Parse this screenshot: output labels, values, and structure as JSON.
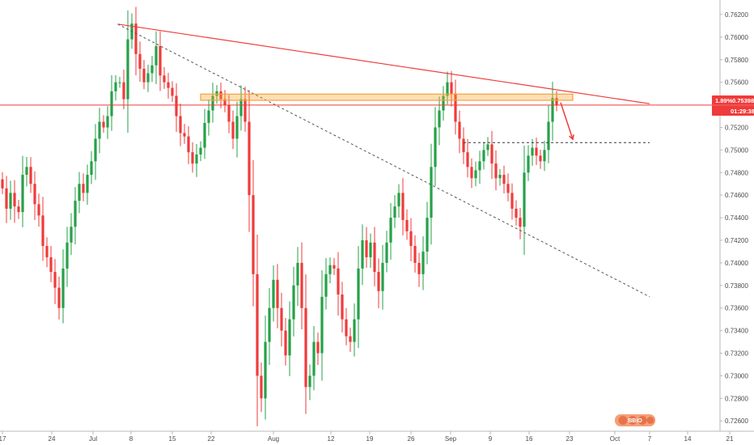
{
  "chart_data": {
    "type": "candlestick",
    "y_ticks": [
      "0.76200",
      "0.76000",
      "0.75800",
      "0.75600",
      "0.75400",
      "0.75200",
      "0.75000",
      "0.74800",
      "0.74600",
      "0.74400",
      "0.74200",
      "0.74000",
      "0.73800",
      "0.73600",
      "0.73400",
      "0.73200",
      "0.73000",
      "0.72800",
      "0.72600"
    ],
    "x_ticks": [
      "17",
      "24",
      "Jul",
      "8",
      "15",
      "22",
      "Aug",
      "12",
      "19",
      "26",
      "Sep",
      "9",
      "16",
      "23",
      "Oct",
      "7",
      "14",
      "21"
    ],
    "ylim": [
      0.7253,
      0.763
    ],
    "current_price": {
      "change": "1.89%",
      "price": "0.75398",
      "countdown": "01:29:38",
      "value": 0.75398
    },
    "candles_close": [
      0.7466,
      0.7448,
      0.7462,
      0.745,
      0.7445,
      0.7478,
      0.7485,
      0.747,
      0.7452,
      0.7442,
      0.7415,
      0.7405,
      0.7392,
      0.7378,
      0.736,
      0.7395,
      0.7418,
      0.7432,
      0.7455,
      0.747,
      0.7462,
      0.7478,
      0.749,
      0.751,
      0.7525,
      0.752,
      0.753,
      0.7552,
      0.756,
      0.756,
      0.7545,
      0.7598,
      0.7612,
      0.7585,
      0.7572,
      0.756,
      0.7568,
      0.7575,
      0.7592,
      0.7566,
      0.756,
      0.7555,
      0.7548,
      0.753,
      0.7515,
      0.7512,
      0.7498,
      0.7488,
      0.7496,
      0.7502,
      0.7524,
      0.7535,
      0.7548,
      0.7552,
      0.7545,
      0.754,
      0.7525,
      0.751,
      0.753,
      0.7545,
      0.7525,
      0.746,
      0.739,
      0.73,
      0.728,
      0.733,
      0.736,
      0.7385,
      0.736,
      0.734,
      0.7318,
      0.735,
      0.738,
      0.74,
      0.736,
      0.729,
      0.73,
      0.733,
      0.732,
      0.737,
      0.739,
      0.7398,
      0.7395,
      0.7372,
      0.735,
      0.7335,
      0.733,
      0.735,
      0.7395,
      0.742,
      0.7405,
      0.7418,
      0.7392,
      0.7375,
      0.74,
      0.7418,
      0.744,
      0.745,
      0.7462,
      0.7438,
      0.7428,
      0.7415,
      0.74,
      0.739,
      0.741,
      0.744,
      0.7485,
      0.752,
      0.7535,
      0.7548,
      0.756,
      0.755,
      0.7525,
      0.751,
      0.7498,
      0.7485,
      0.7475,
      0.7482,
      0.749,
      0.75,
      0.7505,
      0.7488,
      0.7475,
      0.7478,
      0.747,
      0.7462,
      0.7448,
      0.744,
      0.7432,
      0.748,
      0.7495,
      0.7502,
      0.7495,
      0.749,
      0.75,
      0.7525,
      0.7546,
      0.754
    ],
    "annotations": [
      {
        "type": "trendline",
        "style": "solid",
        "color": "#ef3b3b",
        "from": {
          "bar": 28.5,
          "price": 0.76115
        },
        "to": {
          "bar": 160,
          "price": 0.7541
        }
      },
      {
        "type": "trendline",
        "style": "dashed",
        "color": "#555555",
        "from": {
          "bar": 28.5,
          "price": 0.76115
        },
        "to": {
          "bar": 160,
          "price": 0.737
        }
      },
      {
        "type": "horizontal_line",
        "style": "solid",
        "color": "#ef3b3b",
        "price": 0.75398
      },
      {
        "type": "zone",
        "color": "#f7a233",
        "from_bar": 49,
        "to_bar": 141,
        "price_top": 0.75495,
        "price_bottom": 0.7544
      },
      {
        "type": "horizontal_line",
        "style": "dashed",
        "color": "#333333",
        "from_bar": 114,
        "to_bar": 160,
        "price": 0.75065
      },
      {
        "type": "arrow",
        "color": "#ef3b3b",
        "from": {
          "bar": 138,
          "price": 0.7542
        },
        "to": {
          "bar": 141,
          "price": 0.75095
        }
      }
    ],
    "up_color": "#26a148",
    "down_color": "#ef3b3b",
    "grid": false,
    "logo": "BBIO"
  }
}
